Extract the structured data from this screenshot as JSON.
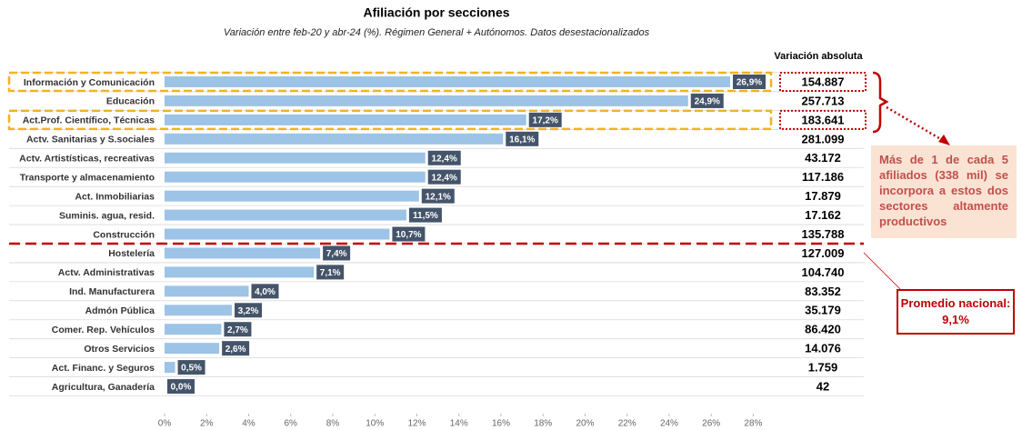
{
  "chart_data": {
    "type": "bar",
    "orientation": "horizontal",
    "title": "Afiliación por secciones",
    "subtitle": "Variación entre feb-20 y abr-24 (%). Régimen General + Autónomos. Datos desestacionalizados",
    "categories": [
      "Información y Comunicación",
      "Educación",
      "Act.Prof. Científico, Técnicas",
      "Actv. Sanitarias y S.sociales",
      "Actv. Artistísticas, recreativas",
      "Transporte y almacenamiento",
      "Act. Inmobiliarias",
      "Suminis. agua, resid.",
      "Construcción",
      "Hostelería",
      "Actv. Administrativas",
      "Ind. Manufacturera",
      "Admón Pública",
      "Comer. Rep. Vehículos",
      "Otros Servicios",
      "Act. Financ. y Seguros",
      "Agricultura, Ganadería"
    ],
    "values": [
      26.9,
      24.9,
      17.2,
      16.1,
      12.4,
      12.4,
      12.1,
      11.5,
      10.7,
      7.4,
      7.1,
      4.0,
      3.2,
      2.7,
      2.6,
      0.5,
      0.0
    ],
    "value_labels": [
      "26,9%",
      "24,9%",
      "17,2%",
      "16,1%",
      "12,4%",
      "12,4%",
      "12,1%",
      "11,5%",
      "10,7%",
      "7,4%",
      "7,1%",
      "4,0%",
      "3,2%",
      "2,7%",
      "2,6%",
      "0,5%",
      "0,0%"
    ],
    "color": "#9dc3e6",
    "absolute_header": "Variación absoluta",
    "absolute_values": [
      "154.887",
      "257.713",
      "183.641",
      "281.099",
      "43.172",
      "117.186",
      "17.879",
      "17.162",
      "135.788",
      "127.009",
      "104.740",
      "83.352",
      "35.179",
      "86.420",
      "14.076",
      "1.759",
      "42"
    ],
    "highlighted": [
      0,
      2
    ],
    "xlim": [
      0,
      28.5
    ],
    "xticks": [
      {
        "value": 0,
        "label": "0%"
      },
      {
        "value": 2,
        "label": "2%"
      },
      {
        "value": 4,
        "label": "4%"
      },
      {
        "value": 6,
        "label": "6%"
      },
      {
        "value": 8,
        "label": "8%"
      },
      {
        "value": 10,
        "label": "10%"
      },
      {
        "value": 12,
        "label": "12%"
      },
      {
        "value": 14,
        "label": "14%"
      },
      {
        "value": 16,
        "label": "16%"
      },
      {
        "value": 18,
        "label": "18%"
      },
      {
        "value": 20,
        "label": "20%"
      },
      {
        "value": 22,
        "label": "22%"
      },
      {
        "value": 24,
        "label": "24%"
      },
      {
        "value": 26,
        "label": "26%"
      },
      {
        "value": 28,
        "label": "28%"
      }
    ],
    "annotations": [
      "Más de 1 de cada 5 afiliados (338 mil) se incorpora a estos dos sectores altamente productivos",
      "Promedio nacional: 9,1%"
    ]
  }
}
